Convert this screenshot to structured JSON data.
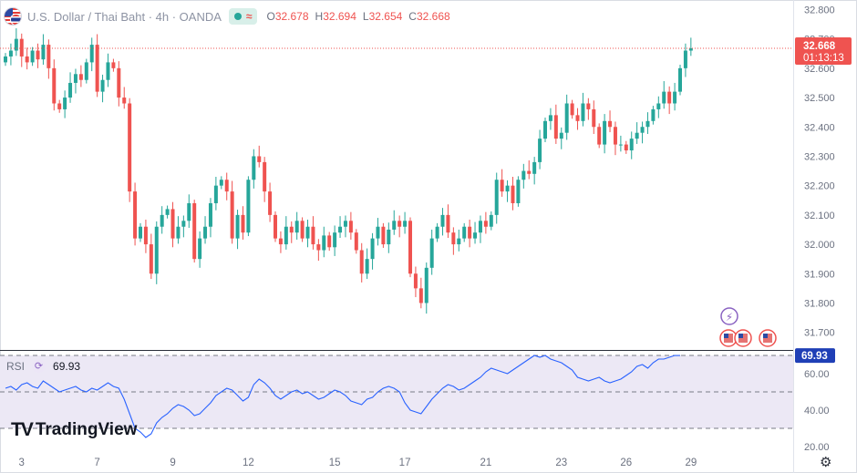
{
  "header": {
    "symbol": "U.S. Dollar / Thai Baht · 4h · OANDA",
    "flag_icon": "usd-thb-flag-icon",
    "market_status_icon": "market-open-icon",
    "open_label": "O",
    "open_value": "32.678",
    "high_label": "H",
    "high_value": "32.694",
    "low_label": "L",
    "low_value": "32.654",
    "close_label": "C",
    "close_value": "32.668"
  },
  "price_scale": {
    "last_price": "32.668",
    "countdown": "01:13:13",
    "ticks": [
      "32.800",
      "32.700",
      "32.600",
      "32.500",
      "32.400",
      "32.300",
      "32.200",
      "32.100",
      "32.000",
      "31.900",
      "31.800",
      "31.700"
    ]
  },
  "rsi": {
    "label": "RSI",
    "value": "69.93",
    "ticks": [
      "60.00",
      "40.00",
      "20.00"
    ]
  },
  "time_axis": {
    "ticks": [
      "3",
      "7",
      "9",
      "12",
      "15",
      "17",
      "21",
      "23",
      "26",
      "29"
    ]
  },
  "branding": {
    "name": "TradingView"
  },
  "colors": {
    "up": "#26a69a",
    "down": "#ef5350",
    "rsi_line": "#2962ff",
    "rsi_band": "#ece8f5"
  },
  "chart_data": [
    {
      "type": "candlestick",
      "title": "U.S. Dollar / Thai Baht · 4h · OANDA",
      "ylim": [
        31.64,
        32.82
      ],
      "grid": false,
      "closes": [
        32.64,
        32.66,
        32.7,
        32.64,
        32.62,
        32.66,
        32.63,
        32.68,
        32.6,
        32.48,
        32.46,
        32.5,
        32.55,
        32.58,
        32.56,
        32.62,
        32.68,
        32.52,
        32.56,
        32.62,
        32.6,
        32.5,
        32.48,
        32.18,
        32.02,
        32.06,
        32.0,
        31.9,
        32.06,
        32.1,
        32.12,
        32.02,
        32.06,
        32.08,
        32.14,
        31.95,
        32.02,
        32.06,
        32.14,
        32.2,
        32.22,
        32.18,
        32.02,
        32.1,
        32.04,
        32.22,
        32.3,
        32.28,
        32.18,
        32.1,
        32.02,
        32.0,
        32.06,
        32.04,
        32.08,
        32.02,
        32.06,
        32.0,
        31.98,
        32.03,
        31.99,
        32.04,
        32.06,
        32.08,
        32.04,
        31.98,
        31.9,
        31.95,
        32.02,
        32.06,
        32.0,
        32.05,
        32.08,
        32.06,
        32.08,
        31.9,
        31.85,
        31.8,
        31.92,
        32.02,
        32.06,
        32.1,
        32.04,
        32.0,
        32.02,
        32.06,
        32.02,
        32.04,
        32.08,
        32.06,
        32.1,
        32.22,
        32.18,
        32.2,
        32.14,
        32.22,
        32.25,
        32.24,
        32.28,
        32.36,
        32.42,
        32.44,
        32.36,
        32.38,
        32.48,
        32.44,
        32.42,
        32.48,
        32.46,
        32.4,
        32.34,
        32.42,
        32.4,
        32.34,
        32.34,
        32.32,
        32.36,
        32.38,
        32.4,
        32.42,
        32.46,
        32.48,
        32.52,
        32.48,
        32.52,
        32.6,
        32.66,
        32.668
      ]
    },
    {
      "type": "line",
      "title": "RSI",
      "ylim": [
        18,
        73
      ],
      "bands": [
        30,
        50,
        70
      ],
      "values": [
        52,
        53,
        51,
        54,
        55,
        53,
        52,
        56,
        54,
        52,
        50,
        51,
        52,
        53,
        51,
        50,
        52,
        51,
        53,
        55,
        53,
        52,
        46,
        38,
        30,
        28,
        25,
        27,
        33,
        36,
        38,
        41,
        43,
        42,
        40,
        37,
        38,
        41,
        44,
        48,
        50,
        52,
        51,
        48,
        45,
        47,
        54,
        57,
        55,
        52,
        48,
        46,
        48,
        50,
        51,
        49,
        50,
        48,
        46,
        47,
        49,
        51,
        50,
        48,
        45,
        44,
        43,
        46,
        47,
        50,
        52,
        53,
        52,
        50,
        44,
        40,
        39,
        38,
        42,
        46,
        49,
        52,
        54,
        53,
        51,
        52,
        54,
        56,
        58,
        61,
        63,
        62,
        61,
        60,
        62,
        64,
        66,
        68,
        70,
        69,
        70,
        68,
        67,
        66,
        64,
        62,
        58,
        57,
        56,
        57,
        58,
        56,
        55,
        56,
        57,
        59,
        61,
        64,
        65,
        63,
        66,
        68,
        68,
        69,
        70,
        69.93
      ]
    }
  ]
}
